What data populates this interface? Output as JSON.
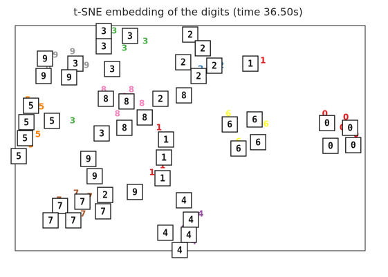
{
  "chart_data": {
    "type": "scatter",
    "title": "t-SNE embedding of the digits (time 36.50s)",
    "xlim": [
      0,
      1
    ],
    "ylim": [
      0,
      1
    ],
    "series": [
      {
        "name": "0",
        "color": "#e41a1c",
        "x": [
          0.885,
          0.945,
          0.974,
          0.905,
          0.935
        ],
        "y": [
          0.607,
          0.592,
          0.515,
          0.485,
          0.546
        ]
      },
      {
        "name": "1",
        "color": "#e41a1c",
        "x": [
          0.411,
          0.441,
          0.391,
          0.421,
          0.708
        ],
        "y": [
          0.546,
          0.5,
          0.347,
          0.377,
          0.844
        ]
      },
      {
        "name": "2",
        "color": "#377eb8",
        "x": [
          0.51,
          0.549,
          0.589,
          0.53,
          0.431
        ],
        "y": [
          0.945,
          0.883,
          0.822,
          0.807,
          0.684
        ]
      },
      {
        "name": "3",
        "color": "#4daf4a",
        "x": [
          0.283,
          0.332,
          0.372,
          0.312,
          0.164
        ],
        "y": [
          0.975,
          0.96,
          0.929,
          0.899,
          0.577
        ]
      },
      {
        "name": "4",
        "color": "#984ea3",
        "x": [
          0.49,
          0.53,
          0.431,
          0.48,
          0.51
        ],
        "y": [
          0.209,
          0.163,
          0.086,
          0.101,
          0.04
        ]
      },
      {
        "name": "5",
        "color": "#ff7f00",
        "x": [
          0.036,
          0.075,
          0.026,
          0.065,
          0.045
        ],
        "y": [
          0.669,
          0.638,
          0.561,
          0.515,
          0.469
        ]
      },
      {
        "name": "6",
        "color": "#ffff33",
        "x": [
          0.609,
          0.668,
          0.717,
          0.638,
          0.698
        ],
        "y": [
          0.607,
          0.592,
          0.561,
          0.485,
          0.5
        ]
      },
      {
        "name": "7",
        "color": "#a65628",
        "x": [
          0.125,
          0.174,
          0.213,
          0.194,
          0.144
        ],
        "y": [
          0.224,
          0.255,
          0.239,
          0.163,
          0.193
        ]
      },
      {
        "name": "8",
        "color": "#f781bf",
        "x": [
          0.253,
          0.312,
          0.362,
          0.332,
          0.292
        ],
        "y": [
          0.715,
          0.684,
          0.653,
          0.715,
          0.607
        ]
      },
      {
        "name": "9",
        "color": "#999999",
        "x": [
          0.115,
          0.164,
          0.204,
          0.095,
          0.352
        ],
        "y": [
          0.868,
          0.883,
          0.822,
          0.807,
          0.27
        ]
      }
    ],
    "thumbnails": [
      {
        "label": "3",
        "x": 0.253,
        "y": 0.975
      },
      {
        "label": "3",
        "x": 0.253,
        "y": 0.908
      },
      {
        "label": "3",
        "x": 0.328,
        "y": 0.954
      },
      {
        "label": "3",
        "x": 0.277,
        "y": 0.807
      },
      {
        "label": "3",
        "x": 0.247,
        "y": 0.521
      },
      {
        "label": "3",
        "x": 0.172,
        "y": 0.831
      },
      {
        "label": "2",
        "x": 0.5,
        "y": 0.96
      },
      {
        "label": "2",
        "x": 0.536,
        "y": 0.899
      },
      {
        "label": "2",
        "x": 0.48,
        "y": 0.837
      },
      {
        "label": "2",
        "x": 0.569,
        "y": 0.822
      },
      {
        "label": "2",
        "x": 0.524,
        "y": 0.776
      },
      {
        "label": "2",
        "x": 0.415,
        "y": 0.675
      },
      {
        "label": "1",
        "x": 0.672,
        "y": 0.831
      },
      {
        "label": "1",
        "x": 0.431,
        "y": 0.494
      },
      {
        "label": "1",
        "x": 0.425,
        "y": 0.414
      },
      {
        "label": "1",
        "x": 0.421,
        "y": 0.322
      },
      {
        "label": "8",
        "x": 0.482,
        "y": 0.69
      },
      {
        "label": "8",
        "x": 0.259,
        "y": 0.675
      },
      {
        "label": "8",
        "x": 0.318,
        "y": 0.663
      },
      {
        "label": "8",
        "x": 0.37,
        "y": 0.592
      },
      {
        "label": "8",
        "x": 0.312,
        "y": 0.546
      },
      {
        "label": "9",
        "x": 0.085,
        "y": 0.853
      },
      {
        "label": "9",
        "x": 0.081,
        "y": 0.776
      },
      {
        "label": "9",
        "x": 0.154,
        "y": 0.77
      },
      {
        "label": "9",
        "x": 0.209,
        "y": 0.408
      },
      {
        "label": "9",
        "x": 0.227,
        "y": 0.331
      },
      {
        "label": "9",
        "x": 0.342,
        "y": 0.261
      },
      {
        "label": "5",
        "x": 0.045,
        "y": 0.644
      },
      {
        "label": "5",
        "x": 0.032,
        "y": 0.571
      },
      {
        "label": "5",
        "x": 0.105,
        "y": 0.577
      },
      {
        "label": "5",
        "x": 0.028,
        "y": 0.5
      },
      {
        "label": "5",
        "x": 0.01,
        "y": 0.42
      },
      {
        "label": "6",
        "x": 0.613,
        "y": 0.561
      },
      {
        "label": "6",
        "x": 0.684,
        "y": 0.583
      },
      {
        "label": "6",
        "x": 0.694,
        "y": 0.482
      },
      {
        "label": "6",
        "x": 0.638,
        "y": 0.454
      },
      {
        "label": "0",
        "x": 0.891,
        "y": 0.567
      },
      {
        "label": "0",
        "x": 0.957,
        "y": 0.546
      },
      {
        "label": "0",
        "x": 0.901,
        "y": 0.466
      },
      {
        "label": "0",
        "x": 0.966,
        "y": 0.469
      },
      {
        "label": "4",
        "x": 0.482,
        "y": 0.224
      },
      {
        "label": "4",
        "x": 0.502,
        "y": 0.138
      },
      {
        "label": "4",
        "x": 0.429,
        "y": 0.08
      },
      {
        "label": "4",
        "x": 0.496,
        "y": 0.071
      },
      {
        "label": "4",
        "x": 0.47,
        "y": 0.003
      },
      {
        "label": "7",
        "x": 0.128,
        "y": 0.199
      },
      {
        "label": "7",
        "x": 0.192,
        "y": 0.218
      },
      {
        "label": "2",
        "x": 0.257,
        "y": 0.248
      },
      {
        "label": "7",
        "x": 0.251,
        "y": 0.175
      },
      {
        "label": "7",
        "x": 0.101,
        "y": 0.135
      },
      {
        "label": "7",
        "x": 0.166,
        "y": 0.135
      }
    ]
  }
}
